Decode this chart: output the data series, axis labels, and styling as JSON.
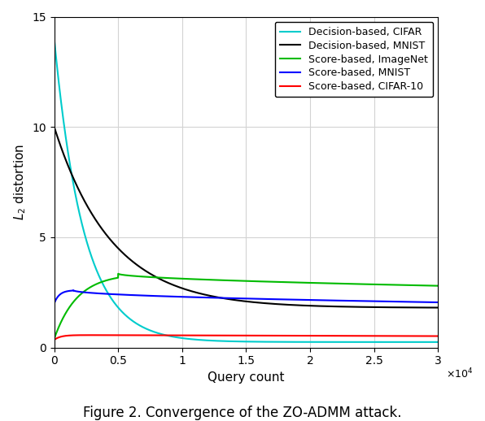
{
  "title": "Figure 2. Convergence of the ZO-ADMM attack.",
  "xlabel": "Query count",
  "xlim": [
    0,
    30000
  ],
  "ylim": [
    0,
    15
  ],
  "xticks": [
    0,
    5000,
    10000,
    15000,
    20000,
    25000,
    30000
  ],
  "xtick_labels": [
    "0",
    "0.5",
    "1",
    "1.5",
    "2",
    "2.5",
    "3"
  ],
  "yticks": [
    0,
    5,
    10,
    15
  ],
  "ytick_labels": [
    "0",
    "5",
    "10",
    "15"
  ],
  "legend": [
    {
      "label": "Score-based, MNIST",
      "color": "#0000ff"
    },
    {
      "label": "Score-based, CIFAR-10",
      "color": "#ff0000"
    },
    {
      "label": "Score-based, ImageNet",
      "color": "#00bb00"
    },
    {
      "label": "Decision-based, MNIST",
      "color": "#000000"
    },
    {
      "label": "Decision-based, CIFAR",
      "color": "#00cccc"
    }
  ],
  "grid_color": "#d3d3d3",
  "linewidth": 1.5
}
